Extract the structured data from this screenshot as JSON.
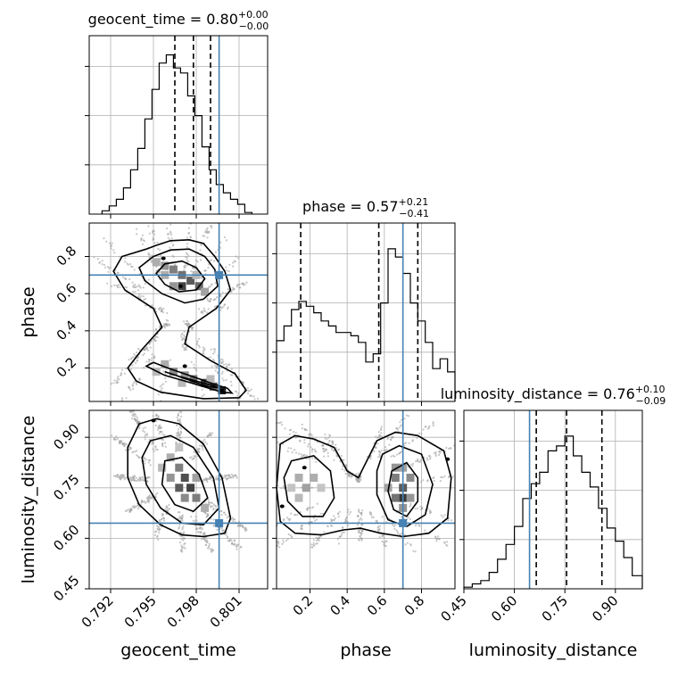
{
  "chart_data": {
    "type": "corner",
    "parameters": [
      "geocent_time",
      "phase",
      "luminosity_distance"
    ],
    "axis_labels": {
      "geocent_time": "geocent_time",
      "phase": "phase",
      "luminosity_distance": "luminosity_distance"
    },
    "ranges": {
      "geocent_time": [
        0.7905,
        0.803
      ],
      "phase": [
        0.02,
        0.98
      ],
      "luminosity_distance": [
        0.45,
        0.98
      ]
    },
    "ticks": {
      "geocent_time": {
        "values": [
          0.792,
          0.795,
          0.798,
          0.801
        ],
        "labels": [
          "0.792",
          "0.795",
          "0.798",
          "0.801"
        ]
      },
      "phase": {
        "values": [
          0.2,
          0.4,
          0.6,
          0.8
        ],
        "labels": [
          "0.2",
          "0.4",
          "0.6",
          "0.8"
        ]
      },
      "luminosity_distance": {
        "values": [
          0.45,
          0.6,
          0.75,
          0.9
        ],
        "labels": [
          "0.45",
          "0.60",
          "0.75",
          "0.90"
        ]
      }
    },
    "truths": {
      "geocent_time": 0.7996,
      "phase": 0.7,
      "luminosity_distance": 0.645
    },
    "titles": [
      {
        "param": "geocent_time",
        "text": "geocent_time = 0.80",
        "plus": "+0.00",
        "minus": "−0.00",
        "quantiles": [
          0.7965,
          0.7978,
          0.799
        ]
      },
      {
        "param": "phase",
        "text": "phase = 0.57",
        "plus": "+0.21",
        "minus": "−0.41",
        "quantiles": [
          0.15,
          0.57,
          0.78
        ]
      },
      {
        "param": "luminosity_distance",
        "text": "luminosity_distance = 0.76",
        "plus": "+0.10",
        "minus": "−0.09",
        "quantiles": [
          0.665,
          0.755,
          0.86
        ]
      }
    ],
    "histograms": {
      "geocent_time": {
        "edges": [
          0.7914,
          0.7919,
          0.7924,
          0.7929,
          0.7934,
          0.7939,
          0.7944,
          0.7949,
          0.7954,
          0.7959,
          0.7964,
          0.7969,
          0.7974,
          0.7979,
          0.7984,
          0.7989,
          0.7994,
          0.7999,
          0.8004,
          0.8009,
          0.8014,
          0.8019
        ],
        "counts": [
          0.02,
          0.05,
          0.09,
          0.16,
          0.27,
          0.4,
          0.58,
          0.76,
          0.92,
          0.97,
          0.89,
          0.86,
          0.72,
          0.6,
          0.41,
          0.27,
          0.18,
          0.13,
          0.09,
          0.06,
          0.01
        ]
      },
      "phase": {
        "edges": [
          0.02,
          0.06,
          0.1,
          0.14,
          0.18,
          0.22,
          0.26,
          0.3,
          0.34,
          0.38,
          0.42,
          0.46,
          0.5,
          0.54,
          0.58,
          0.62,
          0.66,
          0.7,
          0.74,
          0.78,
          0.82,
          0.86,
          0.9,
          0.94,
          0.98
        ],
        "counts": [
          0.37,
          0.46,
          0.56,
          0.61,
          0.58,
          0.54,
          0.49,
          0.46,
          0.42,
          0.42,
          0.4,
          0.36,
          0.24,
          0.29,
          0.6,
          0.93,
          0.88,
          0.78,
          0.6,
          0.49,
          0.36,
          0.2,
          0.26,
          0.18
        ]
      },
      "luminosity_distance": {
        "edges": [
          0.45,
          0.475,
          0.5,
          0.525,
          0.55,
          0.575,
          0.6,
          0.625,
          0.65,
          0.675,
          0.7,
          0.725,
          0.75,
          0.775,
          0.8,
          0.825,
          0.85,
          0.875,
          0.9,
          0.925,
          0.95,
          0.98
        ],
        "counts": [
          0.01,
          0.03,
          0.05,
          0.1,
          0.18,
          0.27,
          0.38,
          0.55,
          0.64,
          0.71,
          0.84,
          0.87,
          0.93,
          0.81,
          0.71,
          0.62,
          0.49,
          0.37,
          0.29,
          0.19,
          0.08
        ]
      }
    },
    "contours": [
      {
        "x": "geocent_time",
        "y": "phase",
        "levels": [
          [
            [
              0.7945,
              0.84
            ],
            [
              0.7952,
              0.86
            ],
            [
              0.7962,
              0.885
            ],
            [
              0.7975,
              0.89
            ],
            [
              0.7985,
              0.87
            ],
            [
              0.7993,
              0.8
            ],
            [
              0.8,
              0.72
            ],
            [
              0.8004,
              0.62
            ],
            [
              0.7994,
              0.52
            ],
            [
              0.7975,
              0.42
            ],
            [
              0.7972,
              0.33
            ],
            [
              0.799,
              0.24
            ],
            [
              0.8007,
              0.17
            ],
            [
              0.8015,
              0.08
            ],
            [
              0.801,
              0.04
            ],
            [
              0.7985,
              0.035
            ],
            [
              0.7955,
              0.07
            ],
            [
              0.7938,
              0.13
            ],
            [
              0.7932,
              0.2
            ],
            [
              0.7942,
              0.3
            ],
            [
              0.7956,
              0.42
            ],
            [
              0.795,
              0.52
            ],
            [
              0.793,
              0.62
            ],
            [
              0.7922,
              0.72
            ],
            [
              0.7928,
              0.8
            ]
          ],
          [
            [
              0.795,
              0.8
            ],
            [
              0.7962,
              0.835
            ],
            [
              0.7975,
              0.84
            ],
            [
              0.7986,
              0.8
            ],
            [
              0.7993,
              0.73
            ],
            [
              0.7995,
              0.64
            ],
            [
              0.7985,
              0.57
            ],
            [
              0.7972,
              0.55
            ],
            [
              0.7956,
              0.6
            ],
            [
              0.7944,
              0.67
            ],
            [
              0.794,
              0.74
            ]
          ],
          [
            [
              0.7958,
              0.76
            ],
            [
              0.797,
              0.775
            ],
            [
              0.798,
              0.74
            ],
            [
              0.7986,
              0.68
            ],
            [
              0.798,
              0.62
            ],
            [
              0.7968,
              0.61
            ],
            [
              0.7958,
              0.65
            ],
            [
              0.7952,
              0.71
            ]
          ],
          [
            [
              0.7945,
              0.21
            ],
            [
              0.7958,
              0.16
            ],
            [
              0.7972,
              0.13
            ],
            [
              0.7985,
              0.1
            ],
            [
              0.7998,
              0.07
            ],
            [
              0.8005,
              0.065
            ],
            [
              0.8002,
              0.09
            ],
            [
              0.799,
              0.12
            ],
            [
              0.7975,
              0.16
            ],
            [
              0.796,
              0.2
            ],
            [
              0.795,
              0.23
            ]
          ],
          [
            [
              0.7958,
              0.18
            ],
            [
              0.7968,
              0.155
            ],
            [
              0.798,
              0.13
            ],
            [
              0.7992,
              0.105
            ],
            [
              0.7995,
              0.095
            ],
            [
              0.7988,
              0.1
            ],
            [
              0.7975,
              0.135
            ],
            [
              0.7962,
              0.17
            ]
          ]
        ]
      },
      {
        "x": "geocent_time",
        "y": "luminosity_distance",
        "levels": [
          [
            [
              0.794,
              0.94
            ],
            [
              0.7952,
              0.955
            ],
            [
              0.7968,
              0.94
            ],
            [
              0.7985,
              0.88
            ],
            [
              0.7998,
              0.78
            ],
            [
              0.8004,
              0.66
            ],
            [
              0.8,
              0.615
            ],
            [
              0.7985,
              0.605
            ],
            [
              0.797,
              0.61
            ],
            [
              0.7955,
              0.64
            ],
            [
              0.794,
              0.7
            ],
            [
              0.7932,
              0.78
            ],
            [
              0.7932,
              0.87
            ]
          ],
          [
            [
              0.7948,
              0.89
            ],
            [
              0.7962,
              0.905
            ],
            [
              0.7978,
              0.87
            ],
            [
              0.7992,
              0.78
            ],
            [
              0.7996,
              0.69
            ],
            [
              0.7985,
              0.64
            ],
            [
              0.797,
              0.645
            ],
            [
              0.7955,
              0.69
            ],
            [
              0.7945,
              0.76
            ],
            [
              0.7942,
              0.84
            ]
          ],
          [
            [
              0.7958,
              0.83
            ],
            [
              0.797,
              0.84
            ],
            [
              0.7982,
              0.79
            ],
            [
              0.7988,
              0.72
            ],
            [
              0.7978,
              0.68
            ],
            [
              0.7965,
              0.7
            ],
            [
              0.7956,
              0.76
            ]
          ]
        ]
      },
      {
        "x": "phase",
        "y": "luminosity_distance",
        "levels": [
          [
            [
              0.04,
              0.88
            ],
            [
              0.12,
              0.905
            ],
            [
              0.22,
              0.895
            ],
            [
              0.33,
              0.87
            ],
            [
              0.4,
              0.8
            ],
            [
              0.46,
              0.78
            ],
            [
              0.56,
              0.89
            ],
            [
              0.66,
              0.915
            ],
            [
              0.78,
              0.905
            ],
            [
              0.92,
              0.86
            ],
            [
              0.96,
              0.78
            ],
            [
              0.94,
              0.66
            ],
            [
              0.84,
              0.615
            ],
            [
              0.7,
              0.605
            ],
            [
              0.58,
              0.615
            ],
            [
              0.47,
              0.63
            ],
            [
              0.38,
              0.625
            ],
            [
              0.26,
              0.61
            ],
            [
              0.12,
              0.615
            ],
            [
              0.04,
              0.65
            ],
            [
              0.02,
              0.75
            ]
          ],
          [
            [
              0.1,
              0.83
            ],
            [
              0.22,
              0.845
            ],
            [
              0.31,
              0.8
            ],
            [
              0.33,
              0.72
            ],
            [
              0.27,
              0.665
            ],
            [
              0.16,
              0.665
            ],
            [
              0.08,
              0.71
            ],
            [
              0.06,
              0.78
            ]
          ],
          [
            [
              0.59,
              0.85
            ],
            [
              0.68,
              0.875
            ],
            [
              0.8,
              0.85
            ],
            [
              0.86,
              0.76
            ],
            [
              0.82,
              0.67
            ],
            [
              0.72,
              0.635
            ],
            [
              0.62,
              0.655
            ],
            [
              0.56,
              0.73
            ],
            [
              0.56,
              0.8
            ]
          ],
          [
            [
              0.64,
              0.8
            ],
            [
              0.72,
              0.825
            ],
            [
              0.78,
              0.78
            ],
            [
              0.78,
              0.71
            ],
            [
              0.72,
              0.665
            ],
            [
              0.65,
              0.685
            ],
            [
              0.62,
              0.74
            ]
          ]
        ]
      }
    ],
    "density_cells": [
      {
        "x": "geocent_time",
        "y": "phase",
        "cells": [
          [
            0.7958,
            0.75,
            0.45
          ],
          [
            0.7964,
            0.73,
            0.55
          ],
          [
            0.797,
            0.7,
            0.6
          ],
          [
            0.7976,
            0.67,
            0.7
          ],
          [
            0.7982,
            0.64,
            0.65
          ],
          [
            0.797,
            0.64,
            0.8
          ],
          [
            0.7964,
            0.64,
            0.45
          ],
          [
            0.7952,
            0.77,
            0.35
          ],
          [
            0.7986,
            0.61,
            0.4
          ],
          [
            0.7958,
            0.7,
            0.35
          ],
          [
            0.798,
            0.7,
            0.3
          ],
          [
            0.7958,
            0.22,
            0.35
          ],
          [
            0.7964,
            0.18,
            0.5
          ],
          [
            0.7972,
            0.16,
            0.45
          ],
          [
            0.7978,
            0.14,
            0.6
          ],
          [
            0.7986,
            0.12,
            0.8
          ],
          [
            0.7992,
            0.1,
            0.7
          ],
          [
            0.7998,
            0.08,
            0.95
          ],
          [
            0.797,
            0.12,
            0.3
          ],
          [
            0.799,
            0.14,
            0.3
          ],
          [
            0.7952,
            0.18,
            0.3
          ]
        ]
      },
      {
        "x": "geocent_time",
        "y": "luminosity_distance",
        "cells": [
          [
            0.7962,
            0.84,
            0.35
          ],
          [
            0.7968,
            0.81,
            0.55
          ],
          [
            0.7972,
            0.78,
            0.75
          ],
          [
            0.7968,
            0.75,
            0.7
          ],
          [
            0.7976,
            0.75,
            0.8
          ],
          [
            0.798,
            0.72,
            0.55
          ],
          [
            0.7972,
            0.72,
            0.5
          ],
          [
            0.7962,
            0.78,
            0.45
          ],
          [
            0.7986,
            0.69,
            0.35
          ],
          [
            0.7956,
            0.81,
            0.3
          ],
          [
            0.7968,
            0.87,
            0.25
          ],
          [
            0.798,
            0.78,
            0.4
          ]
        ]
      },
      {
        "x": "phase",
        "y": "luminosity_distance",
        "cells": [
          [
            0.66,
            0.78,
            0.55
          ],
          [
            0.7,
            0.75,
            0.7
          ],
          [
            0.7,
            0.72,
            0.85
          ],
          [
            0.66,
            0.72,
            0.6
          ],
          [
            0.74,
            0.78,
            0.5
          ],
          [
            0.66,
            0.81,
            0.45
          ],
          [
            0.74,
            0.72,
            0.45
          ],
          [
            0.62,
            0.75,
            0.4
          ],
          [
            0.7,
            0.81,
            0.4
          ],
          [
            0.7,
            0.69,
            0.45
          ],
          [
            0.14,
            0.78,
            0.35
          ],
          [
            0.18,
            0.75,
            0.4
          ],
          [
            0.22,
            0.78,
            0.35
          ],
          [
            0.14,
            0.72,
            0.3
          ],
          [
            0.26,
            0.75,
            0.25
          ],
          [
            0.1,
            0.75,
            0.25
          ]
        ]
      }
    ],
    "peak_dots": [
      {
        "x": "geocent_time",
        "y": "phase",
        "points": [
          [
            0.7957,
            0.79
          ],
          [
            0.7969,
            0.64
          ],
          [
            0.7972,
            0.21
          ],
          [
            0.7998,
            0.08
          ]
        ]
      },
      {
        "x": "geocent_time",
        "y": "luminosity_distance",
        "points": [
          [
            0.795,
            0.95
          ]
        ]
      },
      {
        "x": "phase",
        "y": "luminosity_distance",
        "points": [
          [
            0.05,
            0.695
          ],
          [
            0.17,
            0.81
          ],
          [
            0.94,
            0.835
          ]
        ]
      }
    ]
  }
}
